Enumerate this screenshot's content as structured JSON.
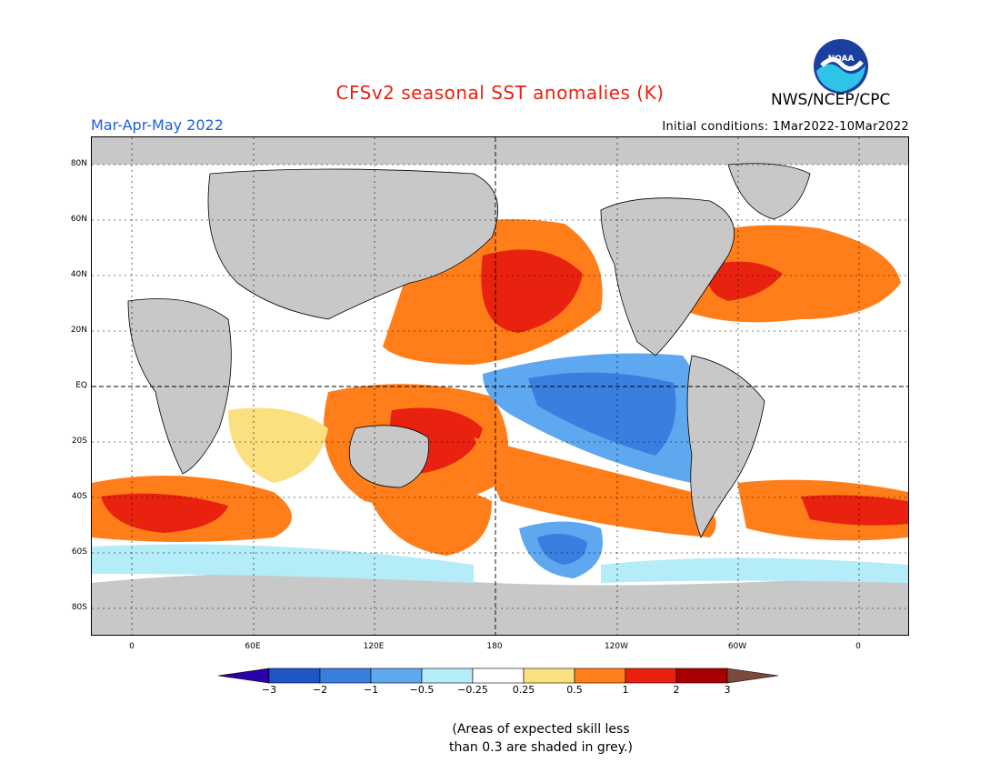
{
  "header": {
    "title": "CFSv2 seasonal SST anomalies (K)",
    "agency": "NWS/NCEP/CPC",
    "season": "Mar-Apr-May 2022",
    "initial_conditions": "Initial conditions: 1Mar2022-10Mar2022",
    "logo_text": "NOAA"
  },
  "axes": {
    "lat_labels": [
      "80N",
      "60N",
      "40N",
      "20N",
      "EQ",
      "20S",
      "40S",
      "60S",
      "80S"
    ],
    "lon_labels": [
      "0",
      "60E",
      "120E",
      "180",
      "120W",
      "60W",
      "0"
    ],
    "lon_range": [
      -20,
      380
    ],
    "lat_range": [
      -90,
      90
    ]
  },
  "colorbar": {
    "labels": [
      "-3",
      "-2",
      "-1",
      "-0.5",
      "-0.25",
      "0.25",
      "0.5",
      "1",
      "2",
      "3"
    ],
    "colors": [
      "#2a00a8",
      "#1f55c8",
      "#3a7ee0",
      "#5ea8f0",
      "#b4ecf8",
      "#ffffff",
      "#fbe080",
      "#ff7e1a",
      "#e8220f",
      "#a80000",
      "#7a4a3a"
    ]
  },
  "note": {
    "line1": "(Areas of expected skill less",
    "line2": "than 0.3 are shaded in grey.)"
  },
  "colors": {
    "land": "#c8c8c8",
    "ocean_neutral": "#ffffff",
    "title": "#e8220f",
    "season": "#1f5fe0"
  }
}
